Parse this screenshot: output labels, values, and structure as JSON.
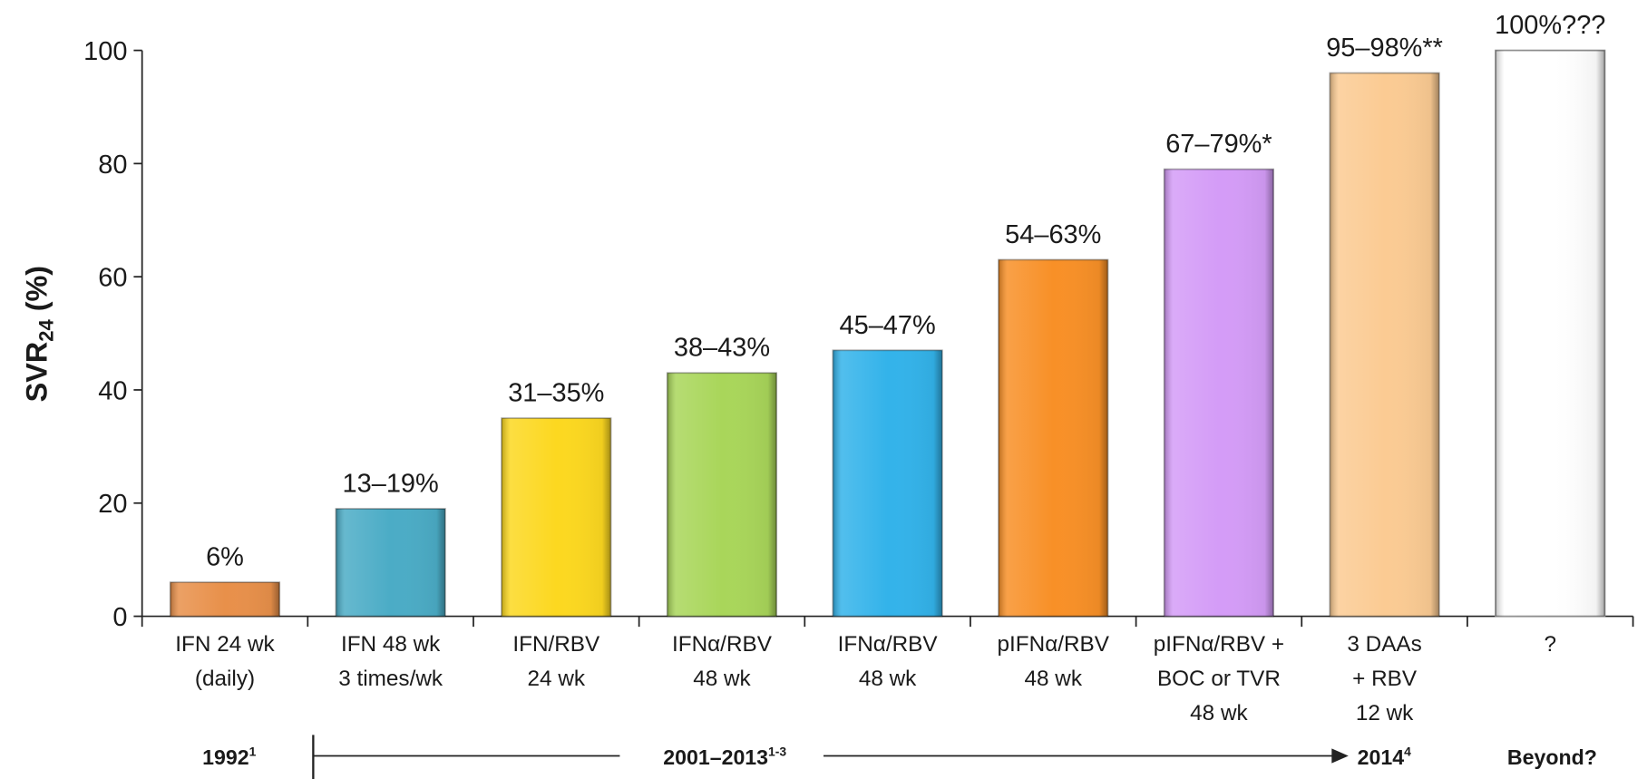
{
  "chart_data": {
    "type": "bar",
    "ylabel": {
      "text": "SVR",
      "subscript": "24",
      "suffix": " (%)"
    },
    "categories": [
      [
        "IFN 24 wk",
        "(daily)"
      ],
      [
        "IFN 48 wk",
        "3 times/wk"
      ],
      [
        "IFN/RBV",
        "24 wk"
      ],
      [
        "IFNα/RBV",
        "48 wk"
      ],
      [
        "IFNα/RBV",
        "48 wk"
      ],
      [
        "pIFNα/RBV",
        "48 wk"
      ],
      [
        "pIFNα/RBV +",
        "BOC or TVR",
        "48 wk"
      ],
      [
        "3 DAAs",
        "+ RBV",
        "12 wk"
      ],
      [
        "?"
      ]
    ],
    "values": [
      6,
      19,
      35,
      43,
      47,
      63,
      79,
      96,
      100
    ],
    "value_labels": [
      "6%",
      "13–19%",
      "31–35%",
      "38–43%",
      "45–47%",
      "54–63%",
      "67–79%*",
      "95–98%**",
      "100%???"
    ],
    "colors": [
      "#e8904a",
      "#4bacc6",
      "#fcd820",
      "#a9d65a",
      "#33b3ea",
      "#f89027",
      "#d49cf7",
      "#fbcb93",
      "#ffffff"
    ],
    "ylim": [
      0,
      100
    ],
    "yticks": [
      0,
      20,
      40,
      60,
      80,
      100
    ],
    "eras": [
      {
        "text": "1992",
        "sup": "1"
      },
      {
        "text": "2001–2013",
        "sup": "1-3"
      },
      {
        "text": "2014",
        "sup": "4"
      },
      {
        "text": "Beyond?"
      }
    ]
  }
}
